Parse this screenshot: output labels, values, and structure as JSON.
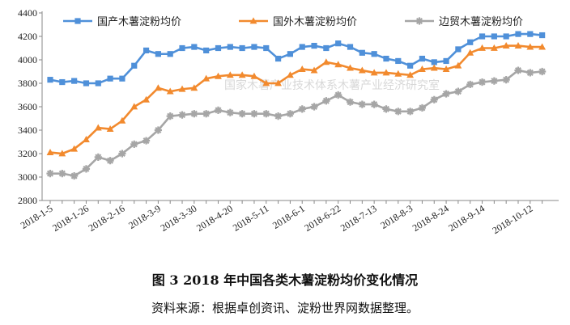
{
  "chart_data": {
    "type": "line",
    "title": "",
    "xlabel": "",
    "ylabel": "",
    "ylim": [
      2800,
      4400
    ],
    "yticks": [
      2800,
      3000,
      3200,
      3400,
      3600,
      3800,
      4000,
      4200,
      4400
    ],
    "grid": false,
    "legend_position": "top",
    "x": [
      "2018-1-5",
      "2018-1-12",
      "2018-1-19",
      "2018-1-26",
      "2018-2-2",
      "2018-2-9",
      "2018-2-16",
      "2018-2-23",
      "2018-3-2",
      "2018-3-9",
      "2018-3-16",
      "2018-3-23",
      "2018-3-30",
      "2018-4-6",
      "2018-4-13",
      "2018-4-20",
      "2018-4-27",
      "2018-5-4",
      "2018-5-11",
      "2018-5-18",
      "2018-5-25",
      "2018-6-1",
      "2018-6-8",
      "2018-6-15",
      "2018-6-22",
      "2018-6-29",
      "2018-7-6",
      "2018-7-13",
      "2018-7-20",
      "2018-7-27",
      "2018-8-3",
      "2018-8-10",
      "2018-8-17",
      "2018-8-24",
      "2018-8-31",
      "2018-9-7",
      "2018-9-14",
      "2018-9-21",
      "2018-9-28",
      "2018-10-5",
      "2018-10-12",
      "2018-10-19"
    ],
    "xtick_labels": [
      "2018-1-5",
      "2018-1-26",
      "2018-2-16",
      "2018-3-9",
      "2018-3-30",
      "2018-4-20",
      "2018-5-11",
      "2018-6-1",
      "2018-6-22",
      "2018-7-13",
      "2018-8-3",
      "2018-8-24",
      "2018-9-14",
      "2018-10-12"
    ],
    "series": [
      {
        "name": "国产木薯淀粉均价",
        "color": "#4f90d9",
        "marker": "square",
        "values": [
          3830,
          3810,
          3820,
          3800,
          3800,
          3840,
          3840,
          3950,
          4080,
          4050,
          4050,
          4100,
          4110,
          4080,
          4100,
          4110,
          4100,
          4110,
          4100,
          4010,
          4050,
          4110,
          4120,
          4100,
          4140,
          4110,
          4060,
          4050,
          4010,
          3990,
          3950,
          4010,
          3980,
          3990,
          4090,
          4150,
          4200,
          4200,
          4200,
          4220,
          4220,
          4210
        ]
      },
      {
        "name": "国外木薯淀粉均价",
        "color": "#f28a2e",
        "marker": "triangle",
        "values": [
          3210,
          3200,
          3240,
          3320,
          3420,
          3410,
          3480,
          3600,
          3660,
          3760,
          3730,
          3750,
          3760,
          3840,
          3860,
          3870,
          3870,
          3860,
          3800,
          3800,
          3870,
          3920,
          3910,
          3980,
          3960,
          3930,
          3910,
          3890,
          3890,
          3880,
          3870,
          3920,
          3930,
          3920,
          3950,
          4060,
          4100,
          4100,
          4120,
          4120,
          4110,
          4110
        ]
      },
      {
        "name": "边贸木薯淀粉均价",
        "color": "#a6a6a6",
        "marker": "star",
        "values": [
          3030,
          3030,
          3010,
          3070,
          3170,
          3140,
          3200,
          3280,
          3310,
          3400,
          3520,
          3530,
          3540,
          3540,
          3570,
          3550,
          3540,
          3540,
          3540,
          3520,
          3540,
          3580,
          3600,
          3650,
          3700,
          3640,
          3620,
          3620,
          3580,
          3560,
          3560,
          3590,
          3660,
          3710,
          3730,
          3790,
          3810,
          3820,
          3830,
          3910,
          3890,
          3900
        ]
      }
    ],
    "watermark": "国家木薯产业技术体系木薯产业经济研究室",
    "caption": "图 3    2018 年中国各类木薯淀粉均价变化情况",
    "source": "资料来源：根据卓创资讯、淀粉世界网数据整理。"
  }
}
